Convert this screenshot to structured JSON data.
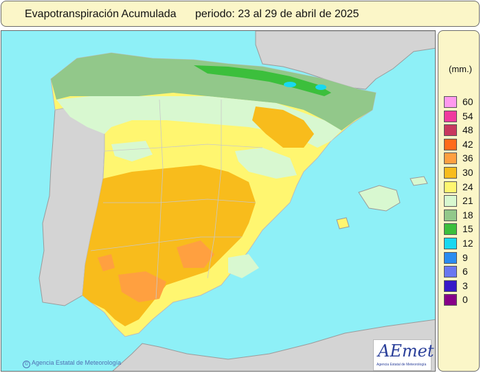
{
  "header": {
    "title": "Evapotranspiración Acumulada",
    "period": "periodo: 23 al 29 de abril de 2025"
  },
  "legend": {
    "unit": "(mm.)",
    "classes": [
      {
        "value": "60",
        "color": "#ff99ee"
      },
      {
        "value": "54",
        "color": "#f03a9e"
      },
      {
        "value": "48",
        "color": "#c8385e"
      },
      {
        "value": "42",
        "color": "#ff6a1a"
      },
      {
        "value": "36",
        "color": "#ffa040"
      },
      {
        "value": "30",
        "color": "#f8bc1c"
      },
      {
        "value": "24",
        "color": "#fff670"
      },
      {
        "value": "21",
        "color": "#d8f8d0"
      },
      {
        "value": "18",
        "color": "#92c88a"
      },
      {
        "value": "15",
        "color": "#3cbf3c"
      },
      {
        "value": "12",
        "color": "#18d8f0"
      },
      {
        "value": "9",
        "color": "#2a8cf0"
      },
      {
        "value": "6",
        "color": "#6a78f0"
      },
      {
        "value": "3",
        "color": "#3818c8"
      },
      {
        "value": "0",
        "color": "#880088"
      }
    ]
  },
  "map_colors": {
    "sea": "#8ef0f7",
    "foreign_land": "#d4d4d4",
    "north_green": "#92c88a",
    "pale_green": "#d8f8d0",
    "yellow": "#fff670",
    "orange": "#f8bc1c",
    "dark_orange": "#ffa040",
    "dark_green": "#3cbf3c",
    "cyan": "#18d8f0"
  },
  "footer": {
    "credit": "Agencia Estatal de Meteorología",
    "credit_symbol": "©"
  },
  "logo": {
    "brand": "AEmet",
    "subtitle": "Agencia Estatal de Meteorología"
  }
}
